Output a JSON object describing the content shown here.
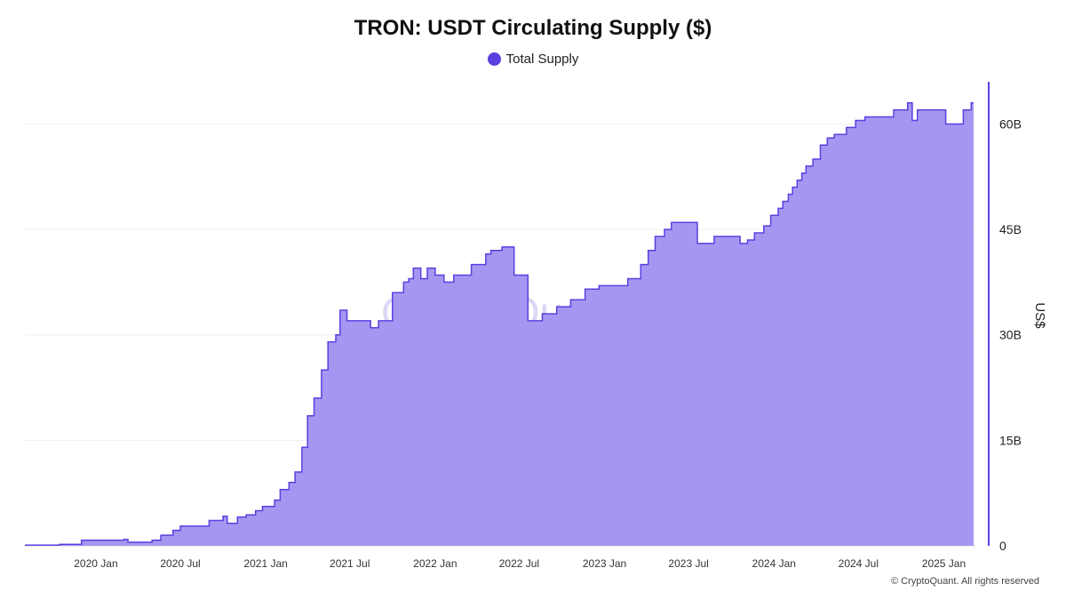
{
  "title": "TRON: USDT Circulating Supply ($)",
  "legend": {
    "label": "Total Supply",
    "color": "#5b3fe0"
  },
  "copyright": "© CryptoQuant. All rights reserved",
  "watermark": "CryptoQuant",
  "colors": {
    "line": "#5b3fe0",
    "fill": "#a597f1",
    "axis": "#5b3fe0",
    "grid": "#eeeeee"
  },
  "chart_data": {
    "type": "area",
    "title": "TRON: USDT Circulating Supply ($)",
    "xlabel": "",
    "ylabel": "US$",
    "y_axis_side": "right",
    "ylim": [
      0,
      66
    ],
    "y_ticks": [
      0,
      15,
      30,
      45,
      60
    ],
    "y_tick_labels": [
      "0",
      "15B",
      "30B",
      "45B",
      "60B"
    ],
    "x_range": [
      "2019-08-01",
      "2025-03-10"
    ],
    "x_ticks": [
      "2020-01-01",
      "2020-07-01",
      "2021-01-01",
      "2021-07-01",
      "2022-01-01",
      "2022-07-01",
      "2023-01-01",
      "2023-07-01",
      "2024-01-01",
      "2024-07-01",
      "2025-01-01"
    ],
    "x_tick_labels": [
      "2020 Jan",
      "2020 Jul",
      "2021 Jan",
      "2021 Jul",
      "2022 Jan",
      "2022 Jul",
      "2023 Jan",
      "2023 Jul",
      "2024 Jan",
      "2024 Jul",
      "2025 Jan"
    ],
    "grid": true,
    "legend_position": "top-center",
    "series": [
      {
        "name": "Total Supply",
        "unit": "billion USD",
        "x": [
          "2019-08-01",
          "2019-10-15",
          "2019-12-01",
          "2020-03-01",
          "2020-03-10",
          "2020-05-01",
          "2020-05-20",
          "2020-06-15",
          "2020-07-01",
          "2020-08-01",
          "2020-09-01",
          "2020-10-01",
          "2020-10-10",
          "2020-11-01",
          "2020-11-20",
          "2020-12-10",
          "2020-12-25",
          "2021-01-20",
          "2021-02-01",
          "2021-02-20",
          "2021-03-05",
          "2021-03-20",
          "2021-04-01",
          "2021-04-15",
          "2021-05-01",
          "2021-05-15",
          "2021-06-01",
          "2021-06-10",
          "2021-06-25",
          "2021-07-10",
          "2021-08-01",
          "2021-08-15",
          "2021-09-01",
          "2021-10-01",
          "2021-10-15",
          "2021-10-25",
          "2021-11-05",
          "2021-11-15",
          "2021-12-01",
          "2021-12-15",
          "2022-01-01",
          "2022-01-20",
          "2022-02-10",
          "2022-03-01",
          "2022-03-20",
          "2022-04-10",
          "2022-04-20",
          "2022-05-01",
          "2022-05-12",
          "2022-05-25",
          "2022-06-20",
          "2022-07-20",
          "2022-08-20",
          "2022-09-20",
          "2022-10-20",
          "2022-11-20",
          "2022-12-20",
          "2023-01-20",
          "2023-02-20",
          "2023-03-20",
          "2023-04-05",
          "2023-04-20",
          "2023-05-10",
          "2023-05-25",
          "2023-06-25",
          "2023-07-20",
          "2023-08-10",
          "2023-08-25",
          "2023-09-20",
          "2023-10-20",
          "2023-11-05",
          "2023-11-20",
          "2023-12-10",
          "2023-12-25",
          "2024-01-10",
          "2024-01-20",
          "2024-02-01",
          "2024-02-10",
          "2024-02-20",
          "2024-03-01",
          "2024-03-10",
          "2024-03-25",
          "2024-04-10",
          "2024-04-25",
          "2024-05-10",
          "2024-06-05",
          "2024-06-25",
          "2024-07-15",
          "2024-09-15",
          "2024-10-10",
          "2024-10-15",
          "2024-10-25",
          "2024-11-05",
          "2024-11-10",
          "2024-12-15",
          "2025-01-05",
          "2025-02-01",
          "2025-02-12",
          "2025-02-20",
          "2025-03-01"
        ],
        "y": [
          0.1,
          0.2,
          0.8,
          0.9,
          0.5,
          0.8,
          1.5,
          2.2,
          2.8,
          2.8,
          3.6,
          4.2,
          3.2,
          4.1,
          4.4,
          5.0,
          5.6,
          6.5,
          8.0,
          9.0,
          10.5,
          14.0,
          18.5,
          21.0,
          25.0,
          29.0,
          30.0,
          33.5,
          32.0,
          32.0,
          32.0,
          31.0,
          32.0,
          36.0,
          36.0,
          37.5,
          38.0,
          39.5,
          38.0,
          39.5,
          38.5,
          37.5,
          38.5,
          38.5,
          40.0,
          40.0,
          41.5,
          42.0,
          42.0,
          42.5,
          38.5,
          32.0,
          33.0,
          34.0,
          35.0,
          36.5,
          37.0,
          37.0,
          38.0,
          40.0,
          42.0,
          44.0,
          45.0,
          46.0,
          46.0,
          43.0,
          43.0,
          44.0,
          44.0,
          43.0,
          43.5,
          44.5,
          45.5,
          47.0,
          48.0,
          49.0,
          50.0,
          51.0,
          52.0,
          53.0,
          54.0,
          55.0,
          57.0,
          58.0,
          58.5,
          59.5,
          60.5,
          61.0,
          62.0,
          62.0,
          63.0,
          60.5,
          62.0,
          62.0,
          62.0,
          60.0,
          60.0,
          62.0,
          62.0,
          63.0
        ]
      }
    ]
  }
}
